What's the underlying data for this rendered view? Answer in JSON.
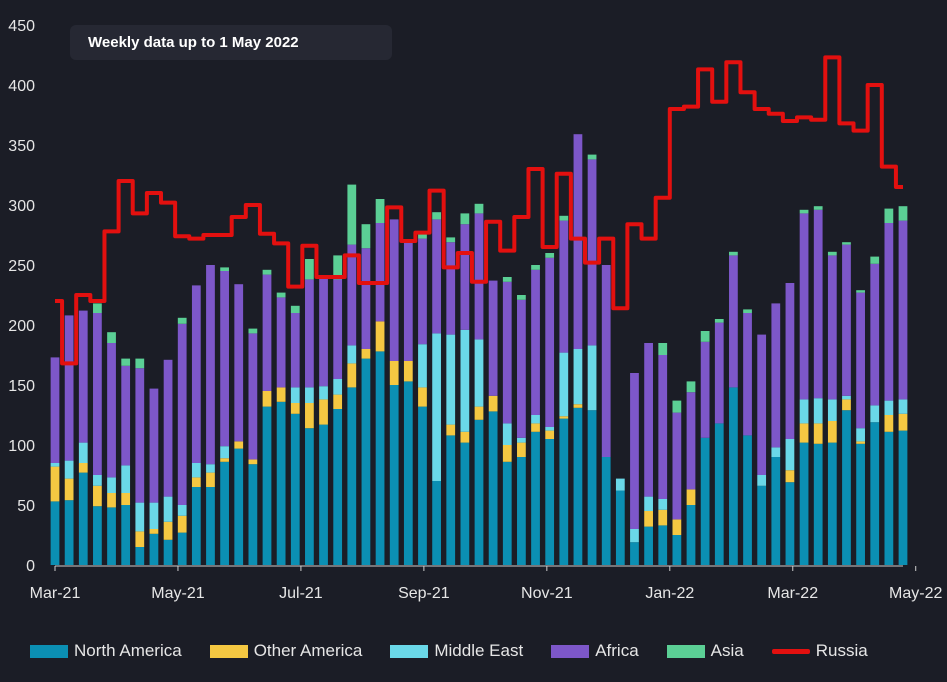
{
  "note": "Weekly data up to 1 May 2022",
  "chart_data": {
    "type": "bar",
    "stacked": true,
    "y_ticks": [
      0,
      50,
      100,
      150,
      200,
      250,
      300,
      350,
      400,
      450
    ],
    "ylim": [
      0,
      450
    ],
    "x_tick_labels": [
      "Mar-21",
      "May-21",
      "Jul-21",
      "Sep-21",
      "Nov-21",
      "Jan-22",
      "Mar-22",
      "May-22"
    ],
    "x_tick_weeks": [
      0,
      8.7,
      17.4,
      26.1,
      34.8,
      43.5,
      52.2,
      60.9
    ],
    "grid": false,
    "legend_position": "bottom",
    "weeks": 61,
    "series": [
      {
        "name": "North America",
        "color": "#0b8fb3",
        "values": [
          53,
          54,
          77,
          49,
          48,
          50,
          15,
          26,
          21,
          27,
          65,
          65,
          86,
          97,
          84,
          132,
          136,
          126,
          114,
          117,
          130,
          148,
          172,
          178,
          150,
          153,
          132,
          70,
          108,
          102,
          121,
          128,
          86,
          90,
          111,
          105,
          122,
          131,
          129,
          90,
          62,
          19,
          32,
          33,
          25,
          50,
          106,
          118,
          148,
          108,
          66,
          90,
          69,
          102,
          101,
          102,
          129,
          101,
          119,
          111,
          112
        ]
      },
      {
        "name": "Other America",
        "color": "#f5c842",
        "values": [
          29,
          18,
          8,
          17,
          12,
          10,
          13,
          4,
          15,
          14,
          8,
          12,
          3,
          6,
          4,
          13,
          12,
          9,
          21,
          21,
          12,
          20,
          8,
          25,
          20,
          17,
          16,
          0,
          9,
          9,
          11,
          13,
          14,
          12,
          7,
          7,
          2,
          3,
          0,
          0,
          0,
          0,
          13,
          13,
          13,
          13,
          0,
          0,
          0,
          0,
          0,
          0,
          10,
          16,
          17,
          18,
          9,
          2,
          0,
          14,
          14
        ]
      },
      {
        "name": "Middle East",
        "color": "#6ad8e8",
        "values": [
          3,
          15,
          17,
          9,
          13,
          23,
          24,
          22,
          21,
          9,
          12,
          7,
          10,
          0,
          0,
          0,
          0,
          13,
          13,
          11,
          13,
          15,
          0,
          0,
          0,
          0,
          36,
          123,
          75,
          85,
          56,
          0,
          18,
          4,
          7,
          3,
          53,
          46,
          54,
          0,
          10,
          11,
          12,
          9,
          0,
          0,
          0,
          0,
          0,
          0,
          9,
          8,
          26,
          20,
          21,
          18,
          3,
          11,
          14,
          12,
          12
        ]
      },
      {
        "name": "Africa",
        "color": "#7d57c9",
        "values": [
          88,
          121,
          110,
          135,
          112,
          83,
          112,
          95,
          114,
          151,
          148,
          166,
          146,
          131,
          105,
          97,
          75,
          62,
          90,
          90,
          83,
          84,
          84,
          82,
          118,
          100,
          88,
          95,
          77,
          88,
          105,
          96,
          118,
          115,
          121,
          141,
          110,
          179,
          155,
          160,
          0,
          130,
          128,
          120,
          89,
          81,
          80,
          84,
          110,
          102,
          117,
          120,
          130,
          155,
          157,
          120,
          126,
          113,
          118,
          148,
          149
        ]
      },
      {
        "name": "Asia",
        "color": "#5bcf95",
        "values": [
          0,
          0,
          0,
          8,
          9,
          6,
          8,
          0,
          0,
          5,
          0,
          0,
          3,
          0,
          4,
          4,
          4,
          6,
          17,
          0,
          20,
          50,
          20,
          20,
          0,
          0,
          5,
          6,
          4,
          9,
          8,
          0,
          4,
          4,
          4,
          4,
          4,
          0,
          4,
          0,
          0,
          0,
          0,
          10,
          10,
          9,
          9,
          3,
          3,
          3,
          0,
          0,
          0,
          3,
          3,
          3,
          2,
          2,
          6,
          12,
          12
        ]
      },
      {
        "name": "Russia",
        "color": "#e3100f",
        "type": "line",
        "values": [
          220,
          168,
          225,
          220,
          278,
          320,
          293,
          310,
          302,
          274,
          272,
          275,
          275,
          290,
          300,
          276,
          268,
          232,
          266,
          240,
          240,
          258,
          235,
          235,
          298,
          270,
          277,
          312,
          248,
          260,
          236,
          286,
          262,
          290,
          330,
          265,
          326,
          272,
          252,
          272,
          214,
          284,
          272,
          306,
          380,
          382,
          413,
          386,
          419,
          394,
          380,
          376,
          370,
          373,
          371,
          423,
          368,
          362,
          400,
          332,
          315
        ]
      }
    ]
  }
}
